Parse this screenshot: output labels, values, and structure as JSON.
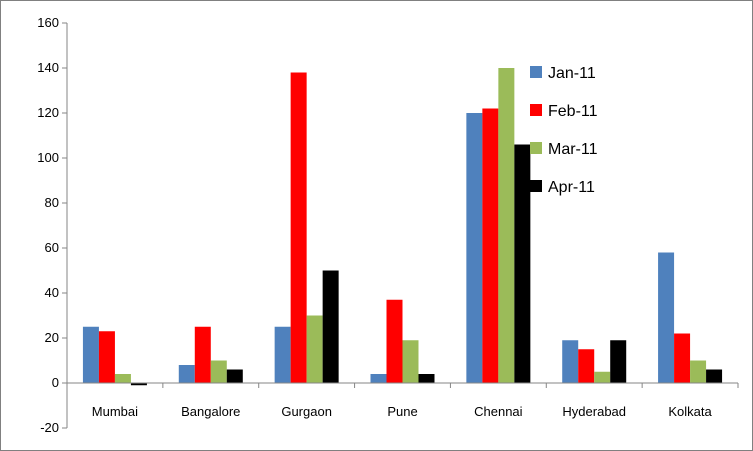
{
  "chart_data": {
    "type": "bar",
    "categories": [
      "Mumbai",
      "Bangalore",
      "Gurgaon",
      "Pune",
      "Chennai",
      "Hyderabad",
      "Kolkata"
    ],
    "series": [
      {
        "name": "Jan-11",
        "color": "#4F81BD",
        "values": [
          25,
          8,
          25,
          4,
          120,
          19,
          58
        ]
      },
      {
        "name": "Feb-11",
        "color": "#FF0000",
        "values": [
          23,
          25,
          138,
          37,
          122,
          15,
          22
        ]
      },
      {
        "name": "Mar-11",
        "color": "#9BBB59",
        "values": [
          4,
          10,
          30,
          19,
          140,
          5,
          10
        ]
      },
      {
        "name": "Apr-11",
        "color": "#000000",
        "values": [
          -1,
          6,
          50,
          4,
          106,
          19,
          6
        ]
      }
    ],
    "title": "",
    "xlabel": "",
    "ylabel": "",
    "ylim": [
      -20,
      160
    ],
    "yticks": [
      "160",
      "140",
      "120",
      "100",
      "80",
      "60",
      "40",
      "20",
      "0",
      "-20"
    ],
    "grid": false,
    "legend": "top-right"
  }
}
